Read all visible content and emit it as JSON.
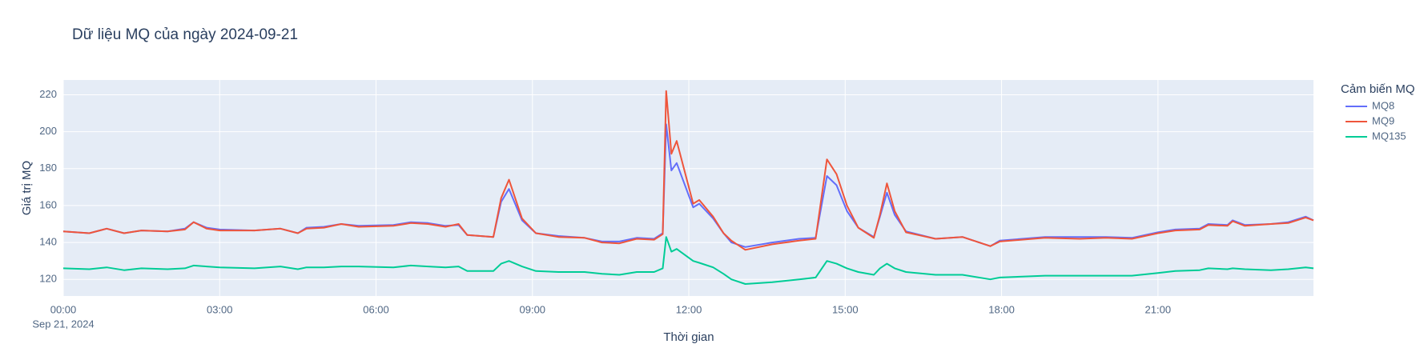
{
  "chart_data": {
    "type": "line",
    "title": "Dữ liệu MQ của ngày 2024-09-21",
    "x_label": "Thời gian",
    "y_label": "Giá trị MQ",
    "legend_title": "Cảm biến MQ",
    "legend": "right",
    "grid": true,
    "x": [
      "2024-09-21 00:00",
      "2024-09-21 00:30",
      "2024-09-21 00:50",
      "2024-09-21 01:10",
      "2024-09-21 01:30",
      "2024-09-21 02:00",
      "2024-09-21 02:20",
      "2024-09-21 02:30",
      "2024-09-21 02:45",
      "2024-09-21 03:00",
      "2024-09-21 03:40",
      "2024-09-21 04:10",
      "2024-09-21 04:30",
      "2024-09-21 04:40",
      "2024-09-21 05:00",
      "2024-09-21 05:20",
      "2024-09-21 05:40",
      "2024-09-21 06:20",
      "2024-09-21 06:40",
      "2024-09-21 07:00",
      "2024-09-21 07:20",
      "2024-09-21 07:35",
      "2024-09-21 07:45",
      "2024-09-21 08:15",
      "2024-09-21 08:24",
      "2024-09-21 08:33",
      "2024-09-21 08:48",
      "2024-09-21 09:04",
      "2024-09-21 09:30",
      "2024-09-21 10:00",
      "2024-09-21 10:20",
      "2024-09-21 10:40",
      "2024-09-21 11:00",
      "2024-09-21 11:20",
      "2024-09-21 11:30",
      "2024-09-21 11:34",
      "2024-09-21 11:40",
      "2024-09-21 11:46",
      "2024-09-21 12:05",
      "2024-09-21 12:12",
      "2024-09-21 12:28",
      "2024-09-21 12:40",
      "2024-09-21 12:49",
      "2024-09-21 13:05",
      "2024-09-21 13:36",
      "2024-09-21 14:07",
      "2024-09-21 14:26",
      "2024-09-21 14:39",
      "2024-09-21 14:50",
      "2024-09-21 15:02",
      "2024-09-21 15:15",
      "2024-09-21 15:33",
      "2024-09-21 15:40",
      "2024-09-21 15:48",
      "2024-09-21 15:57",
      "2024-09-21 16:10",
      "2024-09-21 16:44",
      "2024-09-21 17:15",
      "2024-09-21 17:47",
      "2024-09-21 17:58",
      "2024-09-21 18:50",
      "2024-09-21 19:30",
      "2024-09-21 20:00",
      "2024-09-21 20:30",
      "2024-09-21 21:00",
      "2024-09-21 21:20",
      "2024-09-21 21:48",
      "2024-09-21 21:58",
      "2024-09-21 22:20",
      "2024-09-21 22:26",
      "2024-09-21 22:40",
      "2024-09-21 23:10",
      "2024-09-21 23:30",
      "2024-09-21 23:50",
      "2024-09-21 23:59"
    ],
    "series": [
      {
        "name": "MQ8",
        "color": "#636efa",
        "values": [
          146,
          145,
          147.5,
          145,
          146.5,
          146,
          147.5,
          151,
          148,
          147,
          146.5,
          147.5,
          145,
          148,
          148.5,
          150,
          149,
          149.5,
          151,
          150.5,
          149,
          149.5,
          144,
          143,
          162,
          169,
          152,
          145,
          143.5,
          142.5,
          140.5,
          140.5,
          142.5,
          142,
          145,
          204,
          179,
          183,
          159,
          161,
          153,
          145,
          140,
          137.5,
          140,
          142,
          142.5,
          176,
          171,
          157,
          148,
          143,
          154,
          167,
          155,
          146,
          142,
          143,
          138,
          141,
          143,
          143,
          143,
          142.5,
          145.5,
          147,
          147.5,
          150,
          149.5,
          152,
          149.5,
          150,
          151,
          154,
          152
        ]
      },
      {
        "name": "MQ9",
        "color": "#EF553B",
        "values": [
          146,
          145,
          147.5,
          145,
          146.5,
          146,
          147,
          151,
          147.5,
          146.5,
          146.5,
          147.5,
          145,
          147.5,
          148,
          150,
          148.5,
          149,
          150.5,
          150,
          148.5,
          150,
          144,
          143,
          164,
          174,
          153,
          145,
          143,
          142.5,
          140,
          139.5,
          142,
          141.5,
          144.5,
          222,
          188,
          195,
          161,
          163,
          154,
          145,
          141,
          136,
          139,
          141,
          142,
          185,
          177,
          160,
          148,
          142.5,
          155,
          172,
          157,
          145.5,
          142,
          143,
          138,
          140.5,
          142.5,
          142,
          142.5,
          142,
          145,
          146.5,
          147,
          149.5,
          149,
          151.5,
          149,
          150,
          150.5,
          153.5,
          152
        ]
      },
      {
        "name": "MQ135",
        "color": "#00cc96",
        "values": [
          126,
          125.5,
          126.5,
          125,
          126,
          125.5,
          126,
          127.5,
          127,
          126.5,
          126,
          127,
          125.5,
          126.5,
          126.5,
          127,
          127,
          126.5,
          127.5,
          127,
          126.5,
          127,
          124.5,
          124.5,
          128.5,
          130,
          127,
          124.5,
          124,
          124,
          123,
          122.5,
          124,
          124,
          126,
          143,
          135,
          136.5,
          130,
          129,
          126.5,
          123,
          120,
          117.5,
          118.5,
          120,
          121,
          130,
          128.5,
          126,
          124,
          122.5,
          126,
          128.5,
          126,
          124,
          122.5,
          122.5,
          120,
          121,
          122,
          122,
          122,
          122,
          123.5,
          124.5,
          125,
          126,
          125.5,
          126,
          125.5,
          125,
          125.5,
          126.5,
          126
        ]
      }
    ],
    "xlim": [
      "2024-09-21 00:00",
      "2024-09-21 23:59"
    ],
    "xticks": [
      {
        "value": "2024-09-21 00:00",
        "label": "00:00"
      },
      {
        "value": "2024-09-21 03:00",
        "label": "03:00"
      },
      {
        "value": "2024-09-21 06:00",
        "label": "06:00"
      },
      {
        "value": "2024-09-21 09:00",
        "label": "09:00"
      },
      {
        "value": "2024-09-21 12:00",
        "label": "12:00"
      },
      {
        "value": "2024-09-21 15:00",
        "label": "15:00"
      },
      {
        "value": "2024-09-21 18:00",
        "label": "18:00"
      },
      {
        "value": "2024-09-21 21:00",
        "label": "21:00"
      }
    ],
    "xtick_sublabel": "Sep 21, 2024",
    "ylim": [
      111,
      228
    ],
    "yticks": [
      120,
      140,
      160,
      180,
      200,
      220
    ]
  }
}
